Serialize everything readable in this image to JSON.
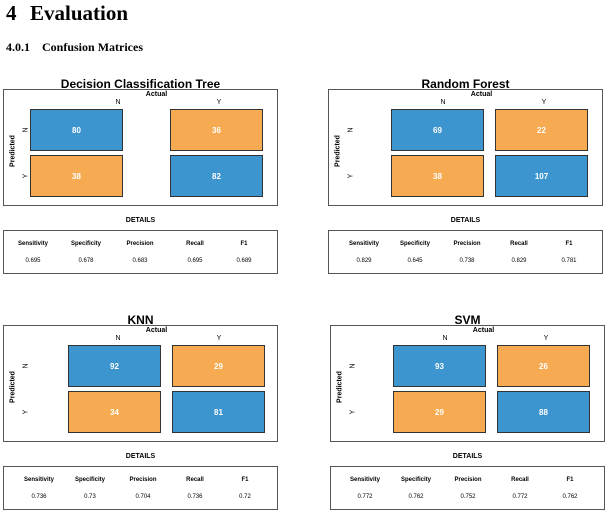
{
  "section": {
    "number": "4",
    "title": "Evaluation"
  },
  "subsection": {
    "number": "4.0.1",
    "title": "Confusion Matrices"
  },
  "labels": {
    "actual": "Actual",
    "predicted": "Predicted",
    "n": "N",
    "y": "Y",
    "details": "DETAILS"
  },
  "metric_names": [
    "Sensitivity",
    "Specificity",
    "Precision",
    "Recall",
    "F1"
  ],
  "colors": {
    "correct": "#3d95d0",
    "incorrect": "#f6ab52"
  },
  "models": [
    {
      "title": "Decision Classification Tree",
      "nn": "80",
      "ny": "36",
      "yn": "38",
      "yy": "82",
      "metrics": [
        "0.695",
        "0.678",
        "0.683",
        "0.695",
        "0.689"
      ]
    },
    {
      "title": "Random Forest",
      "nn": "69",
      "ny": "22",
      "yn": "38",
      "yy": "107",
      "metrics": [
        "0.829",
        "0.645",
        "0.738",
        "0.829",
        "0.781"
      ]
    },
    {
      "title": "KNN",
      "nn": "92",
      "ny": "29",
      "yn": "34",
      "yy": "81",
      "metrics": [
        "0.736",
        "0.73",
        "0.704",
        "0.736",
        "0.72"
      ]
    },
    {
      "title": "SVM",
      "nn": "93",
      "ny": "26",
      "yn": "29",
      "yy": "88",
      "metrics": [
        "0.772",
        "0.762",
        "0.752",
        "0.772",
        "0.762"
      ]
    }
  ]
}
